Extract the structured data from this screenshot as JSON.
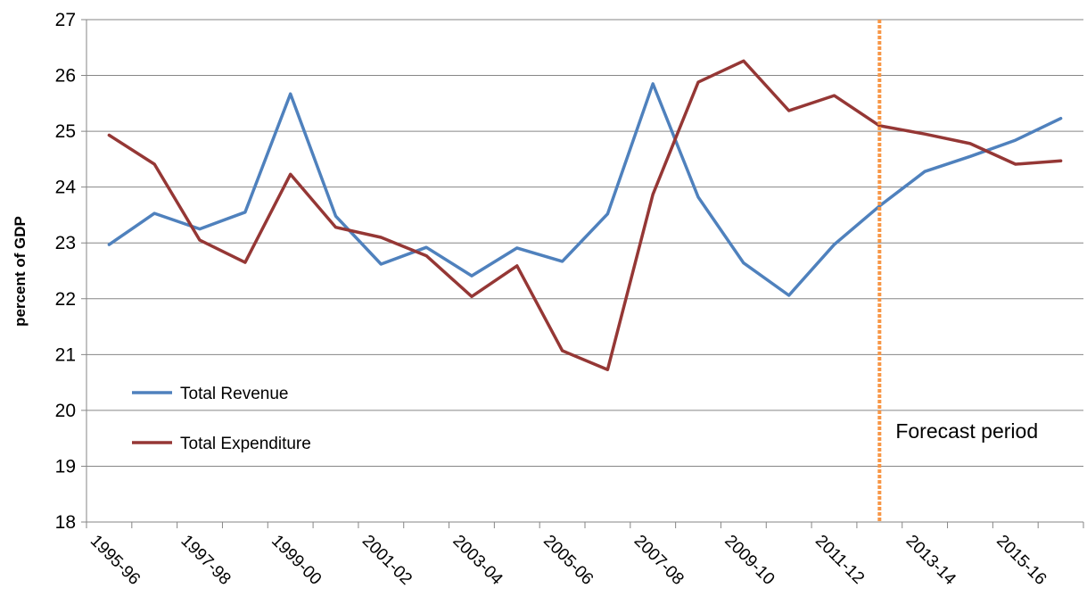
{
  "chart_data": {
    "type": "line",
    "ylabel": "percent of GDP",
    "ylim": [
      18,
      27
    ],
    "yticks": [
      18,
      19,
      20,
      21,
      22,
      23,
      24,
      25,
      26,
      27
    ],
    "grid": "horizontal",
    "legend_position": "lower-left",
    "x": [
      "1995-96",
      "1996-97",
      "1997-98",
      "1998-99",
      "1999-00",
      "2000-01",
      "2001-02",
      "2002-03",
      "2003-04",
      "2004-05",
      "2005-06",
      "2006-07",
      "2007-08",
      "2008-09",
      "2009-10",
      "2010-11",
      "2011-12",
      "2012-13",
      "2013-14",
      "2014-15",
      "2015-16",
      "2016-17"
    ],
    "xtick_labels": [
      "1995-96",
      "1997-98",
      "1999-00",
      "2001-02",
      "2003-04",
      "2005-06",
      "2007-08",
      "2009-10",
      "2011-12",
      "2013-14",
      "2015-16"
    ],
    "series": [
      {
        "name": "Total Revenue",
        "color": "#4f81bd",
        "values": [
          22.97,
          23.53,
          23.25,
          23.55,
          25.67,
          23.48,
          22.62,
          22.92,
          22.41,
          22.91,
          22.67,
          23.52,
          25.85,
          23.82,
          22.64,
          22.06,
          22.97,
          23.66,
          24.28,
          24.55,
          24.84,
          25.23
        ]
      },
      {
        "name": "Total Expenditure",
        "color": "#953735",
        "values": [
          24.93,
          24.41,
          23.05,
          22.65,
          24.23,
          23.28,
          23.1,
          22.77,
          22.04,
          22.59,
          21.07,
          20.73,
          23.87,
          25.88,
          26.26,
          25.37,
          25.64,
          25.1,
          24.95,
          24.78,
          24.41,
          24.47
        ]
      }
    ],
    "annotations": [
      {
        "text": "Forecast period",
        "line_at": "2012-13",
        "line_color": "#f79646"
      }
    ]
  }
}
